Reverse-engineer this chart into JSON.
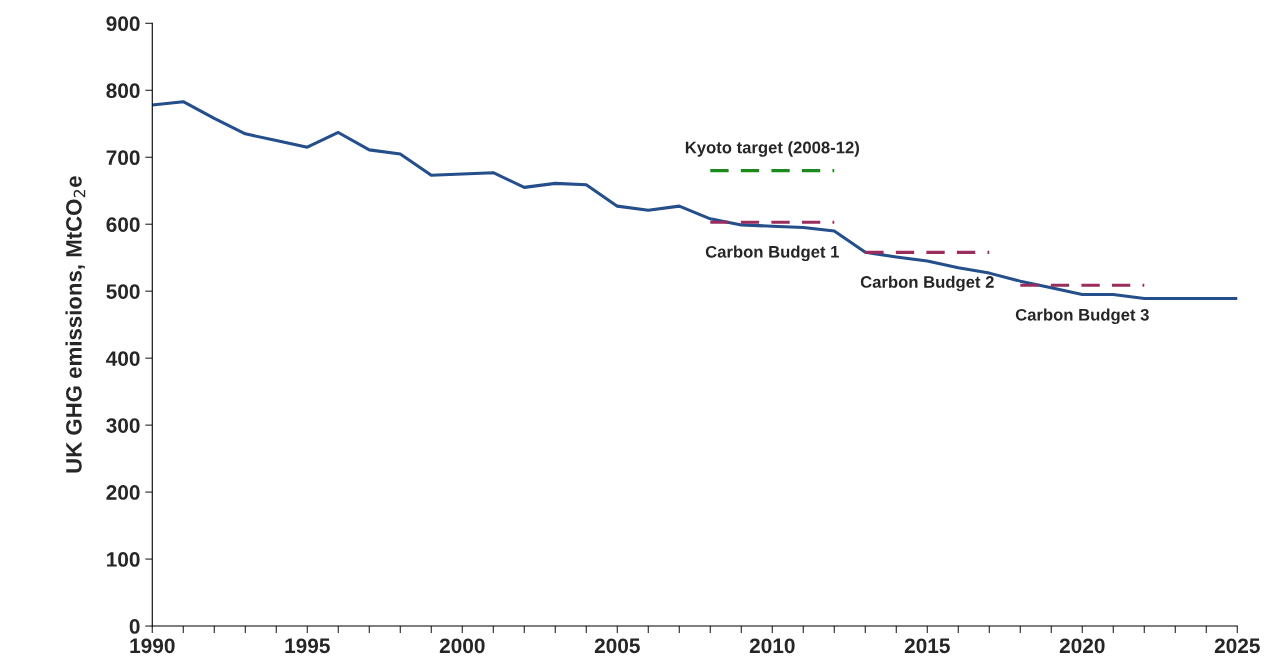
{
  "chart_data": {
    "type": "line",
    "ylabel": "UK GHG emissions, MtCO$_{2}$e",
    "xlim": [
      1990,
      2025
    ],
    "ylim": [
      0,
      900
    ],
    "yticks": [
      0,
      100,
      200,
      300,
      400,
      500,
      600,
      700,
      800,
      900
    ],
    "xticks": [
      1990,
      {
        "value": 1991,
        "label": null
      },
      {
        "value": 1992,
        "label": null
      },
      {
        "value": 1993,
        "label": null
      },
      {
        "value": 1994,
        "label": null
      },
      1995,
      {
        "value": 1996,
        "label": null
      },
      {
        "value": 1997,
        "label": null
      },
      {
        "value": 1998,
        "label": null
      },
      {
        "value": 1999,
        "label": null
      },
      2000,
      {
        "value": 2001,
        "label": null
      },
      {
        "value": 2002,
        "label": null
      },
      {
        "value": 2003,
        "label": null
      },
      {
        "value": 2004,
        "label": null
      },
      2005,
      {
        "value": 2006,
        "label": null
      },
      {
        "value": 2007,
        "label": null
      },
      {
        "value": 2008,
        "label": null
      },
      {
        "value": 2009,
        "label": null
      },
      2010,
      {
        "value": 2011,
        "label": null
      },
      {
        "value": 2012,
        "label": null
      },
      {
        "value": 2013,
        "label": null
      },
      {
        "value": 2014,
        "label": null
      },
      2015,
      {
        "value": 2016,
        "label": null
      },
      {
        "value": 2017,
        "label": null
      },
      {
        "value": 2018,
        "label": null
      },
      {
        "value": 2019,
        "label": null
      },
      2020,
      {
        "value": 2021,
        "label": null
      },
      {
        "value": 2022,
        "label": null
      },
      {
        "value": 2023,
        "label": null
      },
      {
        "value": 2024,
        "label": null
      },
      2025
    ],
    "grid": false,
    "legend": false,
    "series": [
      {
        "color": "#254f8a",
        "line_style": "solid",
        "x": [
          1990,
          1991,
          1992,
          1993,
          1994,
          1995,
          1996,
          1997,
          1998,
          1999,
          2000,
          2001,
          2002,
          2003,
          2004,
          2005,
          2006,
          2007,
          2008,
          2009,
          2010,
          2011,
          2012,
          2013,
          2014,
          2015,
          2016,
          2017,
          2018,
          2019,
          2020,
          2021,
          2022,
          2023,
          2024,
          2025
        ],
        "values": [
          778,
          783,
          758,
          735,
          725,
          715,
          737,
          711,
          705,
          673,
          675,
          677,
          655,
          661,
          659,
          627,
          621,
          627,
          608,
          599,
          597,
          595,
          590,
          558,
          551,
          545,
          535,
          527,
          515,
          505,
          495,
          495,
          489,
          489,
          489,
          489
        ]
      },
      {
        "name": "Kyoto target (2008-12)",
        "color": "#1a8a1a",
        "line_style": "dashed",
        "x": [
          2008,
          2012
        ],
        "values": [
          680,
          680
        ]
      },
      {
        "name": "Carbon Budget 1",
        "color": "#9b2d5e",
        "line_style": "dashed",
        "x": [
          2008,
          2012
        ],
        "values": [
          603,
          603
        ]
      },
      {
        "name": "Carbon Budget 2",
        "color": "#9b2d5e",
        "line_style": "dashed",
        "x": [
          2013,
          2017
        ],
        "values": [
          558,
          558
        ]
      },
      {
        "name": "Carbon Budget 3",
        "color": "#9b2d5e",
        "line_style": "dashed",
        "x": [
          2018,
          2022
        ],
        "values": [
          509,
          509
        ]
      }
    ]
  }
}
